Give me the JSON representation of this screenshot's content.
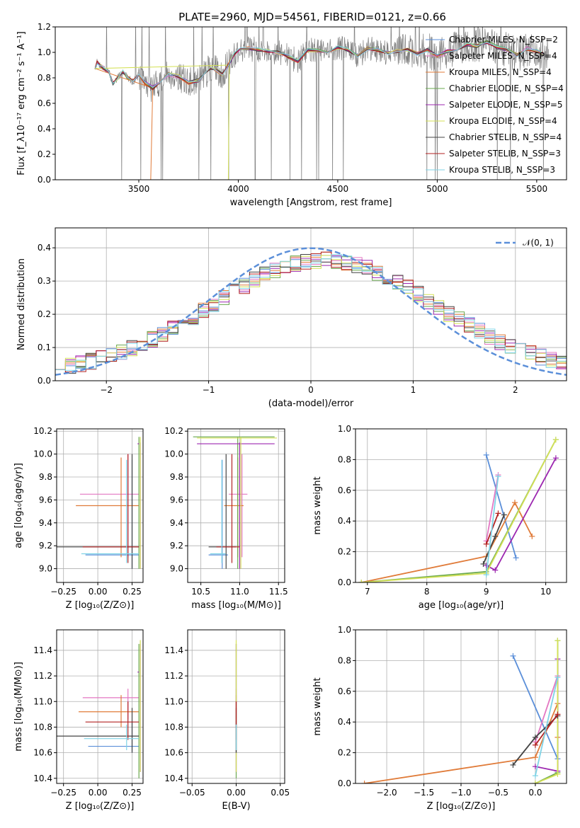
{
  "chart_data": [
    {
      "type": "line",
      "title": "PLATE=2960, MJD=54561, FIBERID=0121, z=0.66",
      "xlabel": "wavelength [Angstrom, rest frame]",
      "ylabel": "Flux [f_λ10⁻¹⁷ erg cm⁻² s⁻¹ A⁻¹]",
      "xlim": [
        3080,
        5650
      ],
      "ylim": [
        0,
        1.2
      ],
      "xticks": [
        "3500",
        "4000",
        "4500",
        "5000",
        "5500"
      ],
      "yticks": [
        "0.0",
        "0.2",
        "0.4",
        "0.6",
        "0.8",
        "1.0",
        "1.2"
      ],
      "grid": false,
      "legend": "right",
      "data_color": "#808080",
      "series": [
        {
          "name": "Chabrier MILES, N_SSP=2",
          "color": "#5b8fd9"
        },
        {
          "name": "Salpeter MILES, N_SSP=4",
          "color": "#e377c2"
        },
        {
          "name": "Kroupa MILES, N_SSP=4",
          "color": "#e07b39"
        },
        {
          "name": "Chabrier ELODIE, N_SSP=4",
          "color": "#6aa84f"
        },
        {
          "name": "Salpeter ELODIE, N_SSP=5",
          "color": "#9c27b0"
        },
        {
          "name": "Kroupa ELODIE, N_SSP=4",
          "color": "#d4e157"
        },
        {
          "name": "Chabrier STELIB, N_SSP=4",
          "color": "#444444"
        },
        {
          "name": "Salpeter STELIB, N_SSP=3",
          "color": "#b22222"
        },
        {
          "name": "Kroupa STELIB, N_SSP=3",
          "color": "#7fd3e6"
        }
      ],
      "model_x": [
        3280,
        3290,
        3320,
        3350,
        3370,
        3390,
        3420,
        3440,
        3470,
        3500,
        3530,
        3570,
        3610,
        3650,
        3700,
        3750,
        3800,
        3830,
        3860,
        3890,
        3920,
        3950,
        3980,
        4010,
        4050,
        4100,
        4150,
        4200,
        4250,
        4300,
        4350,
        4400,
        4450,
        4500,
        4550,
        4600,
        4650,
        4700,
        4750,
        4800,
        4850,
        4900,
        4950,
        5000,
        5050,
        5100,
        5150,
        5200,
        5250,
        5300,
        5350,
        5400,
        5450,
        5500,
        5530
      ],
      "model_y": [
        0.88,
        0.92,
        0.88,
        0.84,
        0.76,
        0.79,
        0.85,
        0.81,
        0.77,
        0.82,
        0.76,
        0.72,
        0.78,
        0.83,
        0.81,
        0.76,
        0.78,
        0.82,
        0.88,
        0.86,
        0.83,
        0.9,
        0.99,
        1.02,
        1.03,
        1.02,
        1.01,
        1.0,
        0.97,
        0.93,
        1.02,
        1.01,
        1.0,
        1.04,
        1.02,
        0.97,
        1.03,
        1.02,
        1.0,
        1.01,
        1.02,
        0.99,
        1.02,
        0.97,
        1.01,
        1.03,
        1.06,
        1.05,
        1.08,
        1.04,
        1.02,
        0.98,
        1.03,
        1.01,
        0.99
      ]
    },
    {
      "type": "histogram",
      "xlabel": "(data-model)/error",
      "ylabel": "Normed distribution",
      "xlim": [
        -2.5,
        2.5
      ],
      "ylim": [
        0,
        0.46
      ],
      "xticks": [
        "−2",
        "−1",
        "0",
        "1",
        "2"
      ],
      "yticks": [
        "0.0",
        "0.1",
        "0.2",
        "0.3",
        "0.4"
      ],
      "grid": true,
      "legend": "top-right",
      "gaussian_label": "𝒩(0, 1)",
      "gaussian_color": "#5b8fd9",
      "bin_width": 0.1
    },
    {
      "type": "scatter",
      "xlabel": "Z [log₁₀(Z/Z⊙)]",
      "ylabel": "age  [log₁₀(age/yr)]",
      "xlim": [
        -0.3,
        0.33
      ],
      "ylim": [
        8.88,
        10.22
      ],
      "xticks": [
        "−0.25",
        "0.00",
        "0.25"
      ],
      "yticks": [
        "9.0",
        "9.2",
        "9.4",
        "9.6",
        "9.8",
        "10.0",
        "10.2"
      ],
      "grid": true
    },
    {
      "type": "scatter",
      "xlabel": "mass [log₁₀(M/M⊙)]",
      "xlim": [
        10.33,
        11.58
      ],
      "ylim": [
        8.88,
        10.22
      ],
      "xticks": [
        "10.5",
        "11.0",
        "11.5"
      ],
      "yticks": [
        "9.0",
        "9.2",
        "9.4",
        "9.6",
        "9.8",
        "10.0",
        "10.2"
      ],
      "grid": true
    },
    {
      "type": "line",
      "xlabel": "age  [log₁₀(age/yr)]",
      "ylabel": "mass weight",
      "xlim": [
        6.8,
        10.35
      ],
      "ylim": [
        0,
        1.0
      ],
      "xticks": [
        "7",
        "8",
        "9",
        "10"
      ],
      "yticks": [
        "0.0",
        "0.2",
        "0.4",
        "0.6",
        "0.8",
        "1.0"
      ],
      "grid": true
    },
    {
      "type": "scatter",
      "xlabel": "Z [log₁₀(Z/Z⊙)]",
      "ylabel": "mass [log₁₀(M/M⊙)]",
      "xlim": [
        -0.3,
        0.33
      ],
      "ylim": [
        10.36,
        11.56
      ],
      "xticks": [
        "−0.25",
        "0.00",
        "0.25"
      ],
      "yticks": [
        "10.4",
        "10.6",
        "10.8",
        "11.0",
        "11.2",
        "11.4"
      ],
      "grid": true
    },
    {
      "type": "scatter",
      "xlabel": "E(B-V)",
      "xlim": [
        -0.055,
        0.055
      ],
      "ylim": [
        10.36,
        11.56
      ],
      "xticks": [
        "−0.05",
        "0.00",
        "0.05"
      ],
      "yticks": [
        "10.4",
        "10.6",
        "10.8",
        "11.0",
        "11.2",
        "11.4"
      ],
      "grid": true
    },
    {
      "type": "line",
      "xlabel": "Z [log₁₀(Z/Z⊙)]",
      "ylabel": "mass weight",
      "xlim": [
        -2.42,
        0.42
      ],
      "ylim": [
        0,
        1.0
      ],
      "xticks": [
        "−2.0",
        "−1.5",
        "−1.0",
        "−0.5",
        "0.0"
      ],
      "yticks": [
        "0.0",
        "0.2",
        "0.4",
        "0.6",
        "0.8",
        "1.0"
      ],
      "grid": true
    }
  ],
  "models": [
    {
      "Z": [
        0.23,
        0.25
      ],
      "ageMean": 9.12,
      "ageErr": [
        9.0,
        9.95
      ],
      "massMean": 10.65,
      "massErr": [
        10.6,
        10.85
      ],
      "ageComp": [
        9.0,
        9.5
      ],
      "Zcomp": [
        -0.3,
        0.3
      ],
      "w": [
        0.83,
        0.16
      ]
    },
    {
      "Z": [
        0.19,
        0.22
      ],
      "ageMean": 9.65,
      "ageErr": [
        9.1,
        10.0
      ],
      "massMean": 11.03,
      "massErr": [
        10.86,
        11.1
      ],
      "ageComp": [
        9.0,
        9.2
      ],
      "Zcomp": [
        0.0,
        0.3
      ],
      "w": [
        0.27,
        0.7
      ]
    },
    {
      "Z": [
        0.16,
        0.17
      ],
      "ageMean": 9.55,
      "ageErr": [
        9.1,
        9.97
      ],
      "massMean": 10.92,
      "massErr": [
        10.8,
        11.05
      ],
      "ageComp": [
        6.9,
        9.0,
        9.48,
        9.77
      ],
      "Zcomp": [
        -2.3,
        0.0,
        0.3,
        0.3
      ],
      "w": [
        0.0,
        0.17,
        0.52,
        0.3
      ]
    },
    {
      "Z": [
        0.3,
        0.3
      ],
      "ageMean": 10.15,
      "ageErr": [
        9.0,
        10.15
      ],
      "massMean": 11.34,
      "massErr": [
        10.4,
        11.45
      ],
      "ageComp": [
        6.9,
        9.0,
        10.17
      ],
      "Zcomp": [
        0.0,
        0.3,
        0.3
      ],
      "w": [
        0.0,
        0.07,
        0.93
      ]
    },
    {
      "Z": [
        0.29,
        0.31
      ],
      "ageMean": 10.09,
      "ageErr": [
        9.0,
        10.1
      ],
      "massMean": 11.23,
      "massErr": [
        10.45,
        11.45
      ],
      "ageComp": [
        9.0,
        9.15,
        10.17
      ],
      "Zcomp": [
        0.0,
        0.3,
        0.3
      ],
      "w": [
        0.11,
        0.08,
        0.81
      ]
    },
    {
      "Z": [
        0.3,
        0.31
      ],
      "ageMean": 10.14,
      "ageErr": [
        9.0,
        10.15
      ],
      "massMean": 11.31,
      "massErr": [
        10.45,
        11.48
      ],
      "ageComp": [
        6.9,
        9.0,
        10.17
      ],
      "Zcomp": [
        0.0,
        0.3,
        0.3
      ],
      "w": [
        0.0,
        0.06,
        0.93
      ]
    },
    {
      "Z": [
        -0.08,
        0.25
      ],
      "ageMean": 9.19,
      "ageErr": [
        9.0,
        10.0
      ],
      "massMean": 10.73,
      "massErr": [
        10.6,
        10.95
      ],
      "ageComp": [
        8.95,
        9.15,
        9.3
      ],
      "Zcomp": [
        -0.3,
        0.0,
        0.3
      ],
      "w": [
        0.12,
        0.3,
        0.44
      ]
    },
    {
      "Z": [
        0.21,
        0.22
      ],
      "ageMean": 9.19,
      "ageErr": [
        9.05,
        10.0
      ],
      "massMean": 10.84,
      "massErr": [
        10.7,
        11.0
      ],
      "ageComp": [
        9.0,
        9.2
      ],
      "Zcomp": [
        0.0,
        0.3
      ],
      "w": [
        0.25,
        0.45
      ]
    },
    {
      "Z": [
        0.2,
        0.21
      ],
      "ageMean": 9.13,
      "ageErr": [
        9.05,
        9.95
      ],
      "massMean": 10.71,
      "massErr": [
        10.62,
        10.82
      ],
      "ageComp": [
        9.0,
        9.2
      ],
      "Zcomp": [
        0.0,
        0.3
      ],
      "w": [
        0.05,
        0.69
      ]
    }
  ]
}
